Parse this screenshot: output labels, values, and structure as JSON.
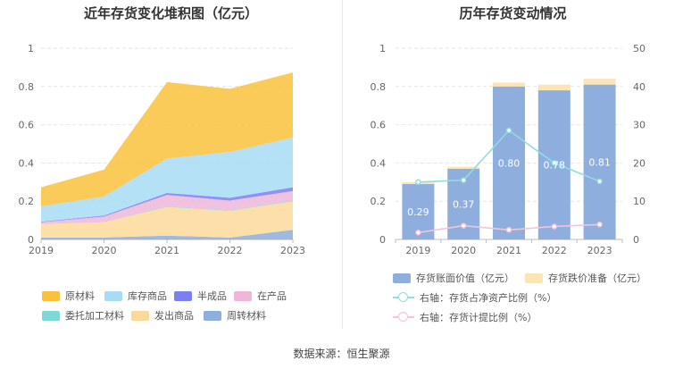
{
  "left": {
    "title": "近年存货变化堆积图（亿元）",
    "legend": [
      {
        "label": "原材料",
        "color": "#f9c23c"
      },
      {
        "label": "库存商品",
        "color": "#a8dcf5"
      },
      {
        "label": "半成品",
        "color": "#7b7ff0"
      },
      {
        "label": "在产品",
        "color": "#efb6da"
      },
      {
        "label": "委托加工材料",
        "color": "#7dd8d6"
      },
      {
        "label": "发出商品",
        "color": "#fbd99a"
      },
      {
        "label": "周转材料",
        "color": "#8eaedd"
      }
    ]
  },
  "right": {
    "title": "历年存货变动情况",
    "legend": [
      {
        "label": "存货账面价值（亿元）",
        "color": "#8eaedd"
      },
      {
        "label": "存货跌价准备（亿元）",
        "color": "#fde4b4"
      },
      {
        "label": "右轴：存货占净资产比例（%）",
        "color": "#8fdde0"
      },
      {
        "label": "右轴：存货计提比例（%）",
        "color": "#f4c3dc"
      }
    ]
  },
  "source": "数据来源：恒生聚源",
  "chart_data": [
    {
      "type": "area",
      "title": "近年存货变化堆积图（亿元）",
      "categories": [
        "2019",
        "2020",
        "2021",
        "2022",
        "2023"
      ],
      "ylim": [
        0,
        1
      ],
      "yticks": [
        "0",
        "0.2",
        "0.4",
        "0.6",
        "0.8",
        "1"
      ],
      "stacked": true,
      "series": [
        {
          "name": "周转材料",
          "color": "#8eaedd",
          "values": [
            0.01,
            0.01,
            0.02,
            0.01,
            0.05
          ]
        },
        {
          "name": "发出商品",
          "color": "#fbd99a",
          "values": [
            0.07,
            0.08,
            0.15,
            0.14,
            0.15
          ]
        },
        {
          "name": "委托加工材料",
          "color": "#7dd8d6",
          "values": [
            0.0,
            0.0,
            0.003,
            0.003,
            0.003
          ]
        },
        {
          "name": "在产品",
          "color": "#efb6da",
          "values": [
            0.01,
            0.03,
            0.06,
            0.05,
            0.05
          ]
        },
        {
          "name": "半成品",
          "color": "#7b7ff0",
          "values": [
            0.003,
            0.005,
            0.01,
            0.015,
            0.02
          ]
        },
        {
          "name": "库存商品",
          "color": "#a8dcf5",
          "values": [
            0.08,
            0.1,
            0.18,
            0.24,
            0.26
          ]
        },
        {
          "name": "原材料",
          "color": "#f9c23c",
          "values": [
            0.1,
            0.14,
            0.4,
            0.33,
            0.34
          ]
        }
      ]
    },
    {
      "type": "bar",
      "title": "历年存货变动情况",
      "categories": [
        "2019",
        "2020",
        "2021",
        "2022",
        "2023"
      ],
      "ylim": [
        0,
        1
      ],
      "yticks": [
        "0",
        "0.2",
        "0.4",
        "0.6",
        "0.8",
        "1"
      ],
      "y2lim": [
        0,
        50
      ],
      "y2ticks": [
        "0",
        "10",
        "20",
        "30",
        "40",
        "50"
      ],
      "series": [
        {
          "name": "存货账面价值（亿元）",
          "color": "#8eaedd",
          "values": [
            0.29,
            0.37,
            0.8,
            0.78,
            0.81
          ],
          "labels": [
            "0.29",
            "0.37",
            "0.80",
            "0.78",
            "0.81"
          ]
        },
        {
          "name": "存货跌价准备（亿元）",
          "color": "#fde4b4",
          "values": [
            0.01,
            0.01,
            0.02,
            0.03,
            0.03
          ]
        }
      ],
      "lines": [
        {
          "name": "右轴：存货占净资产比例（%）",
          "color": "#8fdde0",
          "axis": "right",
          "values": [
            15.0,
            15.5,
            28.5,
            20.0,
            15.2
          ]
        },
        {
          "name": "右轴：存货计提比例（%）",
          "color": "#f4c3dc",
          "axis": "right",
          "values": [
            1.8,
            3.6,
            2.5,
            3.4,
            3.9
          ]
        }
      ]
    }
  ]
}
